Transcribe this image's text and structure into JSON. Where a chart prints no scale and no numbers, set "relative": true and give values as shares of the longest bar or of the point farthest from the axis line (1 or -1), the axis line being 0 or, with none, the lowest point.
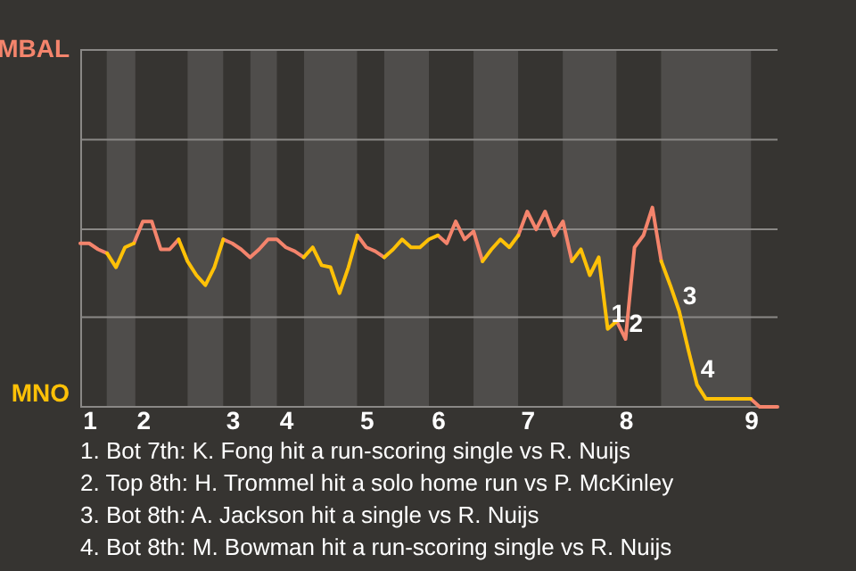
{
  "chart_data": {
    "type": "line",
    "relative": true,
    "categories": [
      null,
      "1",
      null,
      null,
      null,
      null,
      null,
      "2",
      null,
      null,
      null,
      null,
      null,
      null,
      null,
      null,
      null,
      "3",
      null,
      null,
      null,
      null,
      null,
      "4",
      null,
      null,
      null,
      null,
      null,
      null,
      null,
      null,
      "5",
      null,
      null,
      null,
      null,
      null,
      null,
      null,
      "6",
      null,
      null,
      null,
      null,
      null,
      null,
      null,
      null,
      null,
      "7",
      null,
      null,
      null,
      null,
      null,
      null,
      null,
      null,
      null,
      null,
      "8",
      null,
      null,
      null,
      null,
      null,
      null,
      null,
      null,
      null,
      null,
      null,
      null,
      null,
      "9",
      null,
      null,
      null
    ],
    "series": [
      {
        "color": "#f4846c",
        "values": [
          0.82,
          0.82,
          0.79,
          0.77,
          null,
          null,
          0.82,
          0.93,
          0.93,
          0.79,
          0.79,
          0.84,
          null,
          null,
          null,
          null,
          0.84,
          0.82,
          0.79,
          0.75,
          0.79,
          0.84,
          0.84,
          0.8,
          0.78,
          0.75,
          null,
          null,
          null,
          null,
          null,
          0.86,
          0.8,
          0.78,
          0.75,
          null,
          null,
          null,
          null,
          null,
          0.86,
          0.82,
          0.93,
          0.84,
          0.88,
          0.73,
          null,
          null,
          null,
          0.86,
          0.98,
          0.89,
          0.98,
          0.86,
          0.93,
          0.73,
          null,
          null,
          null,
          null,
          0.43,
          0.34,
          0.8,
          0.86,
          1,
          0.73,
          null,
          null,
          null,
          null,
          null,
          null,
          null,
          null,
          null,
          0.04,
          0,
          0,
          0
        ]
      },
      {
        "color": "#ffc107",
        "values": [
          null,
          null,
          null,
          0.77,
          0.7,
          0.8,
          0.82,
          null,
          null,
          null,
          null,
          0.84,
          0.73,
          0.66,
          0.61,
          0.7,
          0.84,
          null,
          null,
          null,
          null,
          null,
          null,
          null,
          null,
          0.75,
          0.8,
          0.71,
          0.7,
          0.57,
          0.7,
          0.86,
          null,
          null,
          0.75,
          0.79,
          0.84,
          0.8,
          0.8,
          0.84,
          0.86,
          null,
          null,
          null,
          null,
          0.73,
          0.79,
          0.84,
          0.8,
          0.86,
          null,
          null,
          null,
          null,
          null,
          0.73,
          0.79,
          0.66,
          0.75,
          0.39,
          0.43,
          null,
          null,
          null,
          null,
          0.73,
          0.61,
          0.48,
          0.29,
          0.11,
          0.04,
          0.04,
          0.04,
          0.04,
          0.04,
          0.04,
          null,
          null,
          null
        ]
      }
    ],
    "ref_lines": [
      {
        "axis": "y",
        "value": 0,
        "label": "MNO",
        "color": "#8a8886"
      },
      {
        "axis": "y",
        "value": 0.45,
        "label": null,
        "color": "#8a8886"
      },
      {
        "axis": "y",
        "value": 0.89,
        "label": null,
        "color": "#8a8886"
      },
      {
        "axis": "y",
        "value": 1.34,
        "label": null,
        "color": "#8a8886"
      },
      {
        "axis": "y",
        "value": 1.79,
        "label": "MBAL",
        "color": "#8a8886"
      }
    ],
    "annotations": [
      {
        "text": "1",
        "y": 0.39
      },
      {
        "text": "2",
        "y": 0.34
      },
      {
        "text": "3",
        "y": 0.48
      },
      {
        "text": "4",
        "y": 0.11
      },
      "1. Bot 7th: K. Fong hit a run-scoring single vs R. Nuijs",
      "2. Top 8th: H. Trommel hit a solo home run vs P. McKinley",
      "3. Bot 8th: A. Jackson hit a single vs R. Nuijs",
      "4. Bot 8th: M. Bowman hit a run-scoring single vs R. Nuijs"
    ]
  }
}
